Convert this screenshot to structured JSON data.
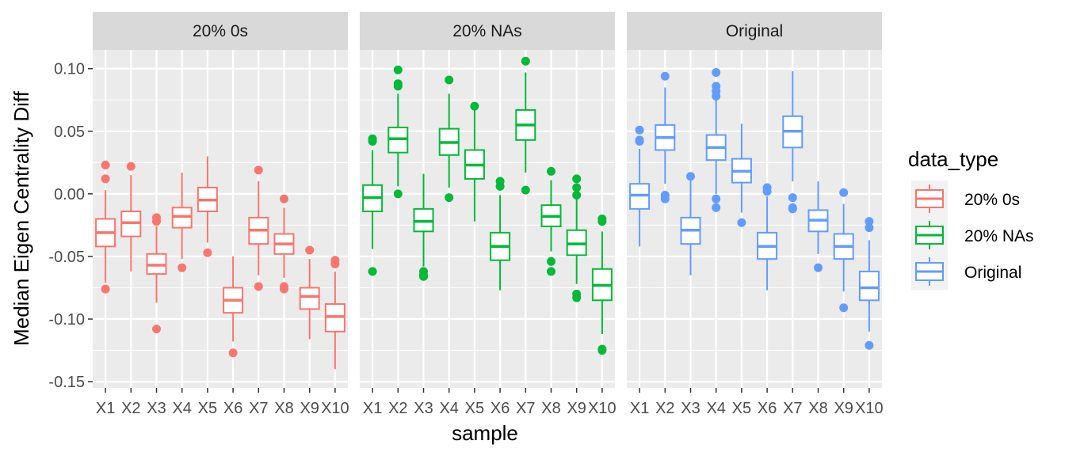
{
  "chart_data": {
    "type": "boxplot",
    "xlabel": "sample",
    "ylabel": "Median Eigen Centrality Diff",
    "ylim": [
      -0.155,
      0.115
    ],
    "yticks": [
      -0.15,
      -0.1,
      -0.05,
      0.0,
      0.05,
      0.1
    ],
    "ytick_labels": [
      "-0.15",
      "-0.10",
      "-0.05",
      "0.00",
      "0.05",
      "0.10"
    ],
    "categories": [
      "X1",
      "X2",
      "X3",
      "X4",
      "X5",
      "X6",
      "X7",
      "X8",
      "X9",
      "X10"
    ],
    "legend": {
      "title": "data_type",
      "position": "right",
      "entries": [
        "20% 0s",
        "20% NAs",
        "Original"
      ]
    },
    "grid": true,
    "facets": [
      {
        "label": "20% 0s",
        "color": "#F8766D",
        "boxes": [
          {
            "min": -0.071,
            "q1": -0.042,
            "median": -0.031,
            "q3": -0.02,
            "max": 0.003,
            "outliers": [
              0.023,
              0.012,
              -0.076
            ]
          },
          {
            "min": -0.062,
            "q1": -0.034,
            "median": -0.023,
            "q3": -0.014,
            "max": 0.015,
            "outliers": [
              0.022
            ]
          },
          {
            "min": -0.087,
            "q1": -0.064,
            "median": -0.057,
            "q3": -0.048,
            "max": -0.026,
            "outliers": [
              -0.019,
              -0.022,
              -0.108
            ]
          },
          {
            "min": -0.052,
            "q1": -0.027,
            "median": -0.018,
            "q3": -0.011,
            "max": 0.017,
            "outliers": [
              -0.059
            ]
          },
          {
            "min": -0.039,
            "q1": -0.014,
            "median": -0.005,
            "q3": 0.005,
            "max": 0.03,
            "outliers": [
              -0.047
            ]
          },
          {
            "min": -0.118,
            "q1": -0.095,
            "median": -0.085,
            "q3": -0.075,
            "max": -0.05,
            "outliers": [
              -0.127
            ]
          },
          {
            "min": -0.065,
            "q1": -0.04,
            "median": -0.029,
            "q3": -0.019,
            "max": 0.01,
            "outliers": [
              0.019,
              -0.074
            ]
          },
          {
            "min": -0.067,
            "q1": -0.048,
            "median": -0.04,
            "q3": -0.032,
            "max": -0.011,
            "outliers": [
              -0.004,
              -0.074,
              -0.076
            ]
          },
          {
            "min": -0.116,
            "q1": -0.092,
            "median": -0.082,
            "q3": -0.075,
            "max": -0.052,
            "outliers": [
              -0.045
            ]
          },
          {
            "min": -0.14,
            "q1": -0.11,
            "median": -0.098,
            "q3": -0.088,
            "max": -0.062,
            "outliers": [
              -0.053,
              -0.056
            ]
          }
        ]
      },
      {
        "label": "20% NAs",
        "color": "#00BA38",
        "boxes": [
          {
            "min": -0.044,
            "q1": -0.014,
            "median": -0.003,
            "q3": 0.007,
            "max": 0.035,
            "outliers": [
              0.044,
              0.042,
              -0.062
            ]
          },
          {
            "min": 0.006,
            "q1": 0.033,
            "median": 0.044,
            "q3": 0.053,
            "max": 0.08,
            "outliers": [
              0.099,
              0.088,
              0.086,
              0.0
            ]
          },
          {
            "min": -0.058,
            "q1": -0.03,
            "median": -0.022,
            "q3": -0.012,
            "max": 0.016,
            "outliers": [
              -0.062,
              -0.065,
              -0.066
            ]
          },
          {
            "min": 0.005,
            "q1": 0.031,
            "median": 0.041,
            "q3": 0.052,
            "max": 0.08,
            "outliers": [
              0.091,
              -0.003
            ]
          },
          {
            "min": -0.022,
            "q1": 0.012,
            "median": 0.023,
            "q3": 0.035,
            "max": 0.068,
            "outliers": [
              0.07
            ]
          },
          {
            "min": -0.077,
            "q1": -0.053,
            "median": -0.042,
            "q3": -0.031,
            "max": -0.001,
            "outliers": [
              0.01,
              0.006
            ]
          },
          {
            "min": 0.017,
            "q1": 0.043,
            "median": 0.055,
            "q3": 0.067,
            "max": 0.097,
            "outliers": [
              0.106,
              0.003
            ]
          },
          {
            "min": -0.046,
            "q1": -0.026,
            "median": -0.018,
            "q3": -0.009,
            "max": 0.011,
            "outliers": [
              0.018,
              -0.054,
              -0.062
            ]
          },
          {
            "min": -0.072,
            "q1": -0.049,
            "median": -0.04,
            "q3": -0.029,
            "max": -0.002,
            "outliers": [
              0.012,
              0.005,
              -0.001,
              -0.08,
              -0.083
            ]
          },
          {
            "min": -0.112,
            "q1": -0.085,
            "median": -0.073,
            "q3": -0.06,
            "max": -0.03,
            "outliers": [
              -0.02,
              -0.022,
              -0.124,
              -0.125
            ]
          }
        ]
      },
      {
        "label": "Original",
        "color": "#619CFF",
        "boxes": [
          {
            "min": -0.042,
            "q1": -0.012,
            "median": -0.001,
            "q3": 0.008,
            "max": 0.036,
            "outliers": [
              0.051,
              0.043,
              0.042
            ]
          },
          {
            "min": 0.008,
            "q1": 0.035,
            "median": 0.045,
            "q3": 0.055,
            "max": 0.085,
            "outliers": [
              0.094,
              -0.001,
              -0.004
            ]
          },
          {
            "min": -0.065,
            "q1": -0.04,
            "median": -0.029,
            "q3": -0.019,
            "max": 0.012,
            "outliers": [
              0.014
            ]
          },
          {
            "min": 0.0,
            "q1": 0.027,
            "median": 0.037,
            "q3": 0.047,
            "max": 0.075,
            "outliers": [
              0.097,
              0.086,
              0.082,
              0.078,
              -0.004,
              -0.011
            ]
          },
          {
            "min": -0.015,
            "q1": 0.009,
            "median": 0.018,
            "q3": 0.028,
            "max": 0.056,
            "outliers": [
              -0.023
            ]
          },
          {
            "min": -0.077,
            "q1": -0.052,
            "median": -0.042,
            "q3": -0.031,
            "max": -0.002,
            "outliers": [
              0.005,
              0.002
            ]
          },
          {
            "min": 0.01,
            "q1": 0.037,
            "median": 0.05,
            "q3": 0.062,
            "max": 0.098,
            "outliers": [
              -0.003,
              -0.011,
              -0.012
            ]
          },
          {
            "min": -0.048,
            "q1": -0.03,
            "median": -0.021,
            "q3": -0.013,
            "max": 0.01,
            "outliers": [
              -0.059
            ]
          },
          {
            "min": -0.078,
            "q1": -0.052,
            "median": -0.042,
            "q3": -0.032,
            "max": -0.008,
            "outliers": [
              0.001,
              -0.091
            ]
          },
          {
            "min": -0.11,
            "q1": -0.085,
            "median": -0.075,
            "q3": -0.062,
            "max": -0.037,
            "outliers": [
              -0.022,
              -0.027,
              -0.121
            ]
          }
        ]
      }
    ]
  }
}
